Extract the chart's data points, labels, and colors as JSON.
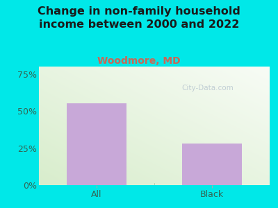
{
  "title": "Change in non-family household\nincome between 2000 and 2022",
  "subtitle": "Woodmore, MD",
  "categories": [
    "All",
    "Black"
  ],
  "values": [
    55,
    28
  ],
  "bar_color": "#c8a8d8",
  "title_color": "#1a1a1a",
  "subtitle_color": "#cc6655",
  "tick_label_color": "#336655",
  "yticks": [
    0,
    25,
    50,
    75
  ],
  "ytick_labels": [
    "0%",
    "25%",
    "50%",
    "75%"
  ],
  "ylim": [
    0,
    80
  ],
  "bg_outer": "#00e8e8",
  "bg_plot_topleft": "#d8edcc",
  "bg_plot_bottomright": "#f5f8f2",
  "watermark": "City-Data.com",
  "title_fontsize": 11.5,
  "subtitle_fontsize": 10,
  "tick_fontsize": 9
}
